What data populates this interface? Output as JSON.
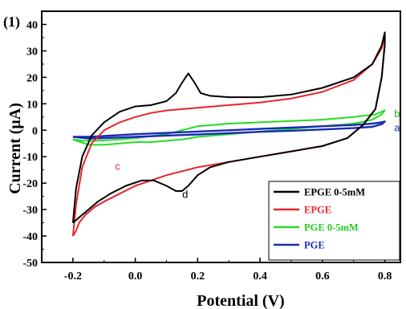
{
  "chart_data": {
    "type": "line",
    "panel_label": "(1)",
    "xlabel": "Potential (V)",
    "ylabel": "Current (μA)",
    "xlim": [
      -0.3,
      0.85
    ],
    "ylim": [
      -50,
      45
    ],
    "xticks": [
      -0.2,
      0.0,
      0.2,
      0.4,
      0.6,
      0.8
    ],
    "xtick_labels": [
      "-0.2",
      "0.0",
      "0.2",
      "0.4",
      "0.6",
      "0.8"
    ],
    "yticks": [
      -50,
      -40,
      -30,
      -20,
      -10,
      0,
      10,
      20,
      30,
      40
    ],
    "ytick_labels": [
      "-50",
      "-40",
      "-30",
      "-20",
      "-10",
      "0",
      "10",
      "20",
      "30",
      "40"
    ],
    "grid": false,
    "legend_position": "bottom-right",
    "series": [
      {
        "name": "EPGE  0-5mM",
        "color": "#000000",
        "annotation": "d",
        "x": [
          -0.2,
          -0.19,
          -0.17,
          -0.14,
          -0.1,
          -0.05,
          0.0,
          0.05,
          0.1,
          0.13,
          0.15,
          0.17,
          0.19,
          0.21,
          0.24,
          0.3,
          0.4,
          0.5,
          0.6,
          0.7,
          0.76,
          0.79,
          0.8,
          0.8,
          0.79,
          0.77,
          0.73,
          0.68,
          0.6,
          0.5,
          0.4,
          0.3,
          0.24,
          0.2,
          0.17,
          0.15,
          0.13,
          0.1,
          0.06,
          0.02,
          -0.03,
          -0.08,
          -0.12,
          -0.15,
          -0.17,
          -0.19,
          -0.2
        ],
        "y": [
          -35,
          -22,
          -10,
          -2,
          3,
          7,
          9,
          9.5,
          11,
          14,
          18,
          21.5,
          18,
          14,
          13,
          12.5,
          12.5,
          13.5,
          16,
          20,
          25,
          32,
          37,
          33,
          20,
          8,
          2,
          -3,
          -6,
          -8,
          -10,
          -12,
          -14,
          -17,
          -21,
          -23,
          -23,
          -21,
          -19,
          -19,
          -21,
          -24,
          -27,
          -30,
          -32,
          -34,
          -35
        ]
      },
      {
        "name": "EPGE",
        "color": "#e8242c",
        "annotation": "c",
        "x": [
          -0.2,
          -0.19,
          -0.17,
          -0.14,
          -0.1,
          -0.05,
          0.0,
          0.05,
          0.1,
          0.2,
          0.3,
          0.4,
          0.5,
          0.6,
          0.7,
          0.76,
          0.79,
          0.8,
          0.8,
          0.79,
          0.77,
          0.73,
          0.68,
          0.6,
          0.5,
          0.4,
          0.3,
          0.2,
          0.1,
          0.0,
          -0.05,
          -0.1,
          -0.13,
          -0.16,
          -0.18,
          -0.19,
          -0.2
        ],
        "y": [
          -40,
          -28,
          -14,
          -5,
          0,
          3,
          5,
          6.5,
          7.5,
          8.5,
          9.5,
          10.5,
          12,
          14.5,
          19,
          25,
          31,
          36,
          32,
          20,
          8,
          2,
          -3,
          -6,
          -8,
          -10,
          -12,
          -14,
          -17,
          -21,
          -24,
          -27,
          -29,
          -32,
          -35,
          -38,
          -40
        ]
      },
      {
        "name": "PGE 0-5mM",
        "color": "#22dd22",
        "annotation": "b",
        "x": [
          -0.2,
          -0.17,
          -0.12,
          -0.05,
          0.0,
          0.1,
          0.2,
          0.3,
          0.4,
          0.5,
          0.6,
          0.7,
          0.77,
          0.8,
          0.79,
          0.76,
          0.7,
          0.6,
          0.5,
          0.4,
          0.3,
          0.2,
          0.15,
          0.1,
          0.05,
          0.0,
          -0.05,
          -0.1,
          -0.15,
          -0.2
        ],
        "y": [
          -3.5,
          -4,
          -4,
          -3.5,
          -3,
          -1.5,
          1.5,
          2.5,
          3,
          3.5,
          4,
          5,
          6,
          7.5,
          6,
          4,
          2.5,
          1.5,
          0.5,
          -0.5,
          -1.5,
          -2.5,
          -3.5,
          -4,
          -4.5,
          -4.5,
          -5,
          -5.5,
          -5.5,
          -3.5
        ]
      },
      {
        "name": "PGE",
        "color": "#1a2bb5",
        "annotation": "a",
        "x": [
          -0.2,
          -0.15,
          -0.1,
          0.0,
          0.1,
          0.2,
          0.3,
          0.4,
          0.5,
          0.6,
          0.7,
          0.76,
          0.79,
          0.8,
          0.79,
          0.76,
          0.7,
          0.6,
          0.5,
          0.4,
          0.3,
          0.2,
          0.1,
          0.0,
          -0.1,
          -0.15,
          -0.2
        ],
        "y": [
          -2.5,
          -2.5,
          -2.2,
          -1.5,
          -1,
          -0.5,
          0,
          0.5,
          1,
          1.5,
          2,
          2.5,
          3,
          3.3,
          2.3,
          1.3,
          0.8,
          0.3,
          -0.2,
          -0.6,
          -1.1,
          -1.6,
          -2,
          -2.5,
          -3,
          -3.1,
          -2.5
        ]
      }
    ]
  }
}
